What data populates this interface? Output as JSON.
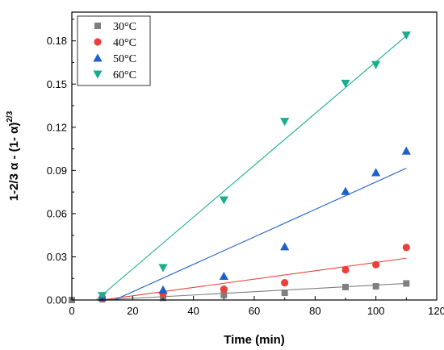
{
  "chart_data": {
    "type": "scatter",
    "xlabel": "Time (min)",
    "ylabel": "1-2/3 α - (1- α)",
    "ylabel_sup": "2/3",
    "xlim": [
      0,
      120
    ],
    "ylim": [
      0,
      0.2
    ],
    "xticks": [
      0,
      20,
      40,
      60,
      80,
      100,
      120
    ],
    "yticks": [
      0.0,
      0.03,
      0.06,
      0.09,
      0.12,
      0.15,
      0.18
    ],
    "ytick_labels": [
      "0.00",
      "0.03",
      "0.06",
      "0.09",
      "0.12",
      "0.15",
      "0.18"
    ],
    "grid": false,
    "legend_position": "top-left",
    "series": [
      {
        "name": "30°C",
        "marker": "square",
        "color": "#7f7f7f",
        "x": [
          0,
          10,
          30,
          50,
          70,
          90,
          100,
          110
        ],
        "y": [
          0.0,
          0.0005,
          0.0015,
          0.0035,
          0.005,
          0.009,
          0.0095,
          0.0115
        ],
        "fit": [
          [
            10,
            0.0
          ],
          [
            110,
            0.0115
          ]
        ]
      },
      {
        "name": "40°C",
        "marker": "circle",
        "color": "#e8413c",
        "x": [
          10,
          30,
          50,
          70,
          90,
          100,
          110
        ],
        "y": [
          0.0015,
          0.0045,
          0.0075,
          0.012,
          0.021,
          0.0245,
          0.0365
        ],
        "fit": [
          [
            10,
            0.0
          ],
          [
            110,
            0.029
          ]
        ]
      },
      {
        "name": "50°C",
        "marker": "triangle-up",
        "color": "#1f5fcc",
        "x": [
          10,
          30,
          50,
          70,
          90,
          100,
          110
        ],
        "y": [
          0.002,
          0.007,
          0.0165,
          0.037,
          0.0755,
          0.0885,
          0.1035
        ],
        "fit": [
          [
            14,
            0.0
          ],
          [
            110,
            0.0915
          ]
        ]
      },
      {
        "name": "60°C",
        "marker": "triangle-down",
        "color": "#1aae8e",
        "x": [
          10,
          30,
          50,
          70,
          90,
          100,
          110
        ],
        "y": [
          0.003,
          0.0225,
          0.0695,
          0.124,
          0.1505,
          0.1635,
          0.184
        ],
        "fit": [
          [
            8,
            0.0
          ],
          [
            110,
            0.1835
          ]
        ]
      }
    ]
  }
}
